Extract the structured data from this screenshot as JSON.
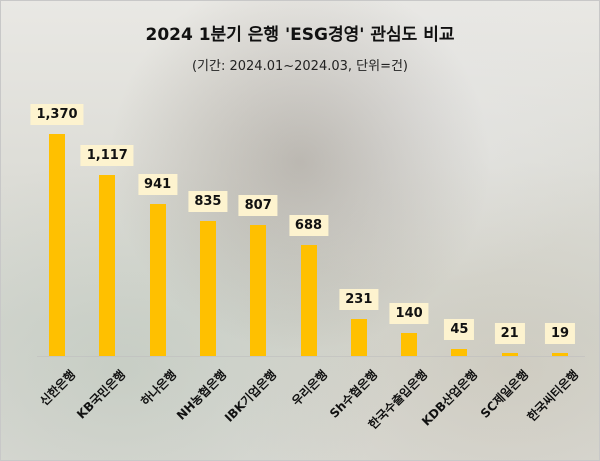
{
  "header": {
    "title": "2024 1분기 은행 'ESG경영' 관심도 비교",
    "subtitle": "(기간: 2024.01~2024.03, 단위=건)"
  },
  "colors": {
    "bar": "#ffc000",
    "label_bg": "#fdf3cf"
  },
  "chart_data": {
    "type": "bar",
    "title": "2024 1분기 은행 'ESG경영' 관심도 비교",
    "subtitle": "(기간: 2024.01~2024.03, 단위=건)",
    "xlabel": "",
    "ylabel": "",
    "grid": false,
    "legend": null,
    "categories": [
      "신한은행",
      "KB국민은행",
      "하나은행",
      "NH농협은행",
      "IBK기업은행",
      "우리은행",
      "Sh수협은행",
      "한국수출입은행",
      "KDB산업은행",
      "SC제일은행",
      "한국씨티은행"
    ],
    "values": [
      1370,
      1117,
      941,
      835,
      807,
      688,
      231,
      140,
      45,
      21,
      19
    ],
    "value_labels": [
      "1,370",
      "1,117",
      "941",
      "835",
      "807",
      "688",
      "231",
      "140",
      "45",
      "21",
      "19"
    ]
  }
}
